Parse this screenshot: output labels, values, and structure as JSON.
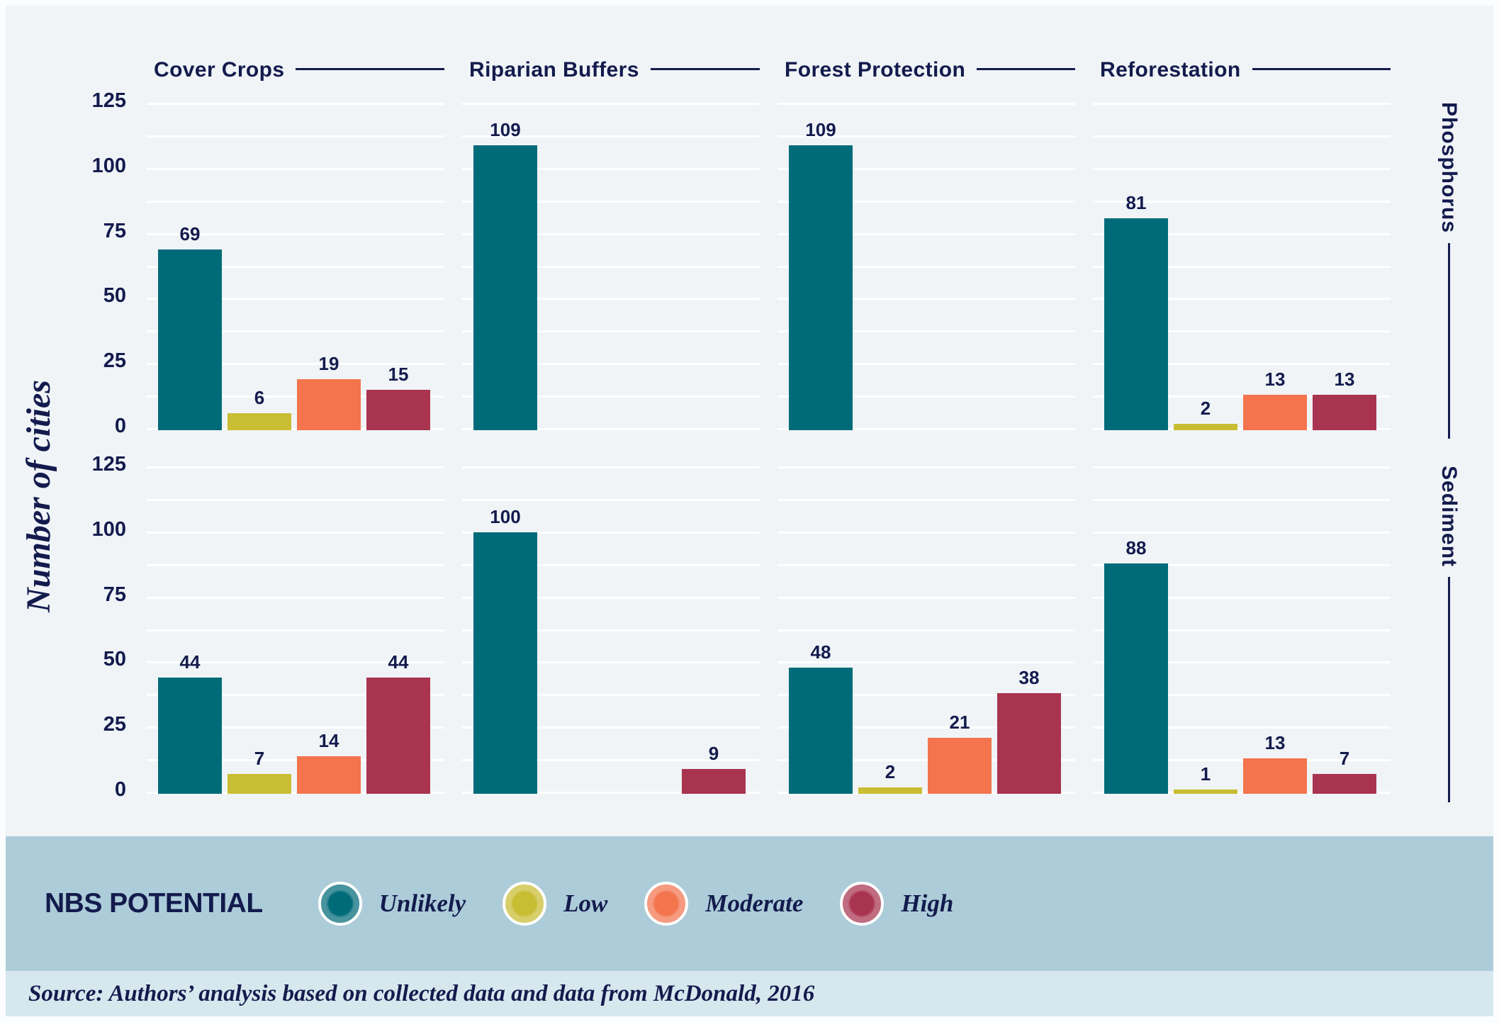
{
  "colors": {
    "text_navy": "#131b4d",
    "chart_bg": "#f0f4f7",
    "gridline": "#ffffff",
    "legend_band_bg": "#adccd9",
    "source_band_bg": "#d6e8ee"
  },
  "legend": {
    "title": "NBS POTENTIAL",
    "items": [
      {
        "label": "Unlikely",
        "color": "#006b78"
      },
      {
        "label": "Low",
        "color": "#c9bd33"
      },
      {
        "label": "Moderate",
        "color": "#f3744d"
      },
      {
        "label": "High",
        "color": "#a93450"
      }
    ]
  },
  "source": "Source: Authors’ analysis based on collected data and data from McDonald, 2016",
  "chart_data": {
    "type": "bar",
    "title": "",
    "ylabel": "Number of cities",
    "ylim": [
      0,
      125
    ],
    "yticks": [
      0,
      25,
      50,
      75,
      100,
      125
    ],
    "y_minor_gridline_step": 12.5,
    "grid": "horizontal white gridlines per facet",
    "legend_position": "bottom band",
    "facet_columns": [
      "Cover Crops",
      "Riparian Buffers",
      "Forest Protection",
      "Reforestation"
    ],
    "facet_rows": [
      "Phosphorus",
      "Sediment"
    ],
    "series_categories": [
      "Unlikely",
      "Low",
      "Moderate",
      "High"
    ],
    "values": {
      "Phosphorus": {
        "Cover Crops": [
          69,
          6,
          19,
          15
        ],
        "Riparian Buffers": [
          109,
          0,
          0,
          0
        ],
        "Forest Protection": [
          109,
          0,
          0,
          0
        ],
        "Reforestation": [
          81,
          2,
          13,
          13
        ]
      },
      "Sediment": {
        "Cover Crops": [
          44,
          7,
          14,
          44
        ],
        "Riparian Buffers": [
          100,
          0,
          0,
          9
        ],
        "Forest Protection": [
          48,
          2,
          21,
          38
        ],
        "Reforestation": [
          88,
          1,
          13,
          7
        ]
      }
    }
  }
}
